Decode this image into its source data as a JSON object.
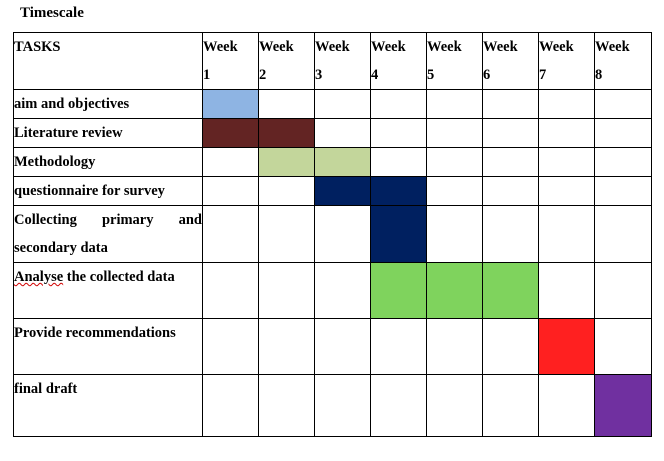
{
  "title": "Timescale",
  "header": {
    "tasks_label": "TASKS",
    "weeks": [
      {
        "word": "Week",
        "num": "1"
      },
      {
        "word": "Week",
        "num": "2"
      },
      {
        "word": "Week",
        "num": "3"
      },
      {
        "word": "Week",
        "num": "4"
      },
      {
        "word": "Week",
        "num": "5"
      },
      {
        "word": "Week",
        "num": "6"
      },
      {
        "word": "Week",
        "num": "7"
      },
      {
        "word": "Week",
        "num": "8"
      }
    ]
  },
  "tasks": [
    {
      "label": "aim and objectives",
      "weeks": [
        1
      ],
      "color": "#8eb4e3"
    },
    {
      "label": "Literature review",
      "weeks": [
        1,
        2
      ],
      "color": "#632423"
    },
    {
      "label": "Methodology",
      "weeks": [
        2,
        3
      ],
      "color": "#c3d69b"
    },
    {
      "label": "questionnaire for survey",
      "weeks": [
        3,
        4
      ],
      "color": "#002060"
    },
    {
      "label": "Collecting primary and secondary data",
      "weeks": [
        4
      ],
      "color": "#002060"
    },
    {
      "label_first_word": "Analyse",
      "label": " the collected data",
      "weeks": [
        4,
        5,
        6
      ],
      "color": "#7fd35d"
    },
    {
      "label": "Provide recommendations",
      "weeks": [
        7
      ],
      "color": "#ff2020"
    },
    {
      "label": "final draft",
      "weeks": [
        8
      ],
      "color": "#7030a0"
    }
  ]
}
